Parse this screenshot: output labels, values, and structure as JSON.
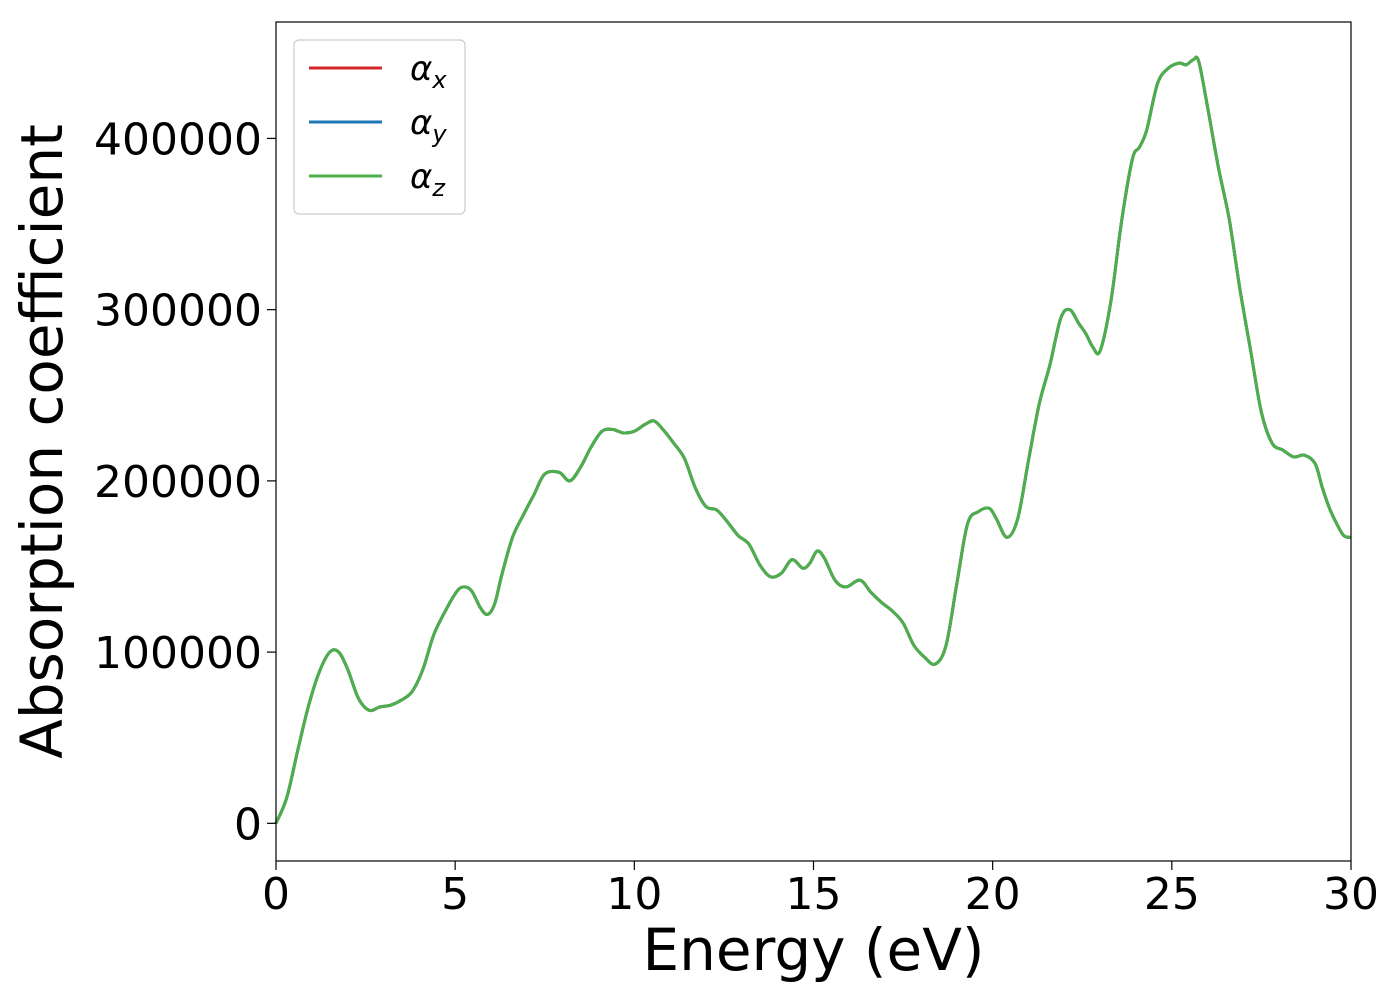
{
  "chart_data": {
    "type": "line",
    "xlabel": "Energy (eV)",
    "ylabel": "Absorption coefficient",
    "xlim": [
      0,
      30
    ],
    "ylim": [
      -22000,
      468000
    ],
    "xticks": [
      0,
      5,
      10,
      15,
      20,
      25,
      30
    ],
    "yticks": [
      0,
      100000,
      200000,
      300000,
      400000
    ],
    "grid": false,
    "legend_position": "upper-left",
    "series": [
      {
        "name": "α_x",
        "symbol": "α",
        "subscript": "x",
        "color": "#d62728",
        "x": [
          0,
          0.3,
          0.6,
          0.9,
          1.2,
          1.5,
          1.75,
          2.0,
          2.3,
          2.6,
          2.9,
          3.2,
          3.5,
          3.8,
          4.1,
          4.4,
          4.7,
          5.0,
          5.2,
          5.45,
          5.7,
          5.9,
          6.1,
          6.3,
          6.6,
          6.9,
          7.2,
          7.5,
          7.9,
          8.2,
          8.5,
          8.8,
          9.1,
          9.4,
          9.7,
          10.0,
          10.3,
          10.55,
          10.8,
          11.1,
          11.4,
          11.7,
          12.0,
          12.3,
          12.6,
          12.9,
          13.2,
          13.5,
          13.8,
          14.1,
          14.4,
          14.7,
          14.9,
          15.1,
          15.3,
          15.6,
          15.9,
          16.3,
          16.6,
          16.9,
          17.2,
          17.5,
          17.8,
          18.1,
          18.4,
          18.7,
          19.0,
          19.3,
          19.6,
          19.9,
          20.1,
          20.4,
          20.7,
          21.0,
          21.3,
          21.6,
          21.9,
          22.15,
          22.4,
          22.6,
          22.8,
          23.0,
          23.3,
          23.6,
          23.9,
          24.1,
          24.3,
          24.6,
          24.9,
          25.2,
          25.4,
          25.6,
          25.75,
          26.0,
          26.3,
          26.6,
          26.9,
          27.2,
          27.5,
          27.8,
          28.1,
          28.4,
          28.7,
          29.0,
          29.2,
          29.4,
          29.6,
          29.8,
          30.0
        ],
        "y": [
          0,
          15000,
          42000,
          68000,
          88000,
          100000,
          100000,
          90000,
          73000,
          66000,
          68000,
          69000,
          72000,
          77000,
          90000,
          110000,
          123000,
          134000,
          138000,
          136000,
          126000,
          122000,
          128000,
          145000,
          167000,
          180000,
          192000,
          204000,
          205000,
          200000,
          208000,
          220000,
          229000,
          230000,
          228000,
          229000,
          233000,
          235000,
          230000,
          222000,
          213000,
          196000,
          185000,
          183000,
          176000,
          168000,
          163000,
          151000,
          144000,
          146000,
          154000,
          149000,
          152000,
          159000,
          155000,
          142000,
          138000,
          142000,
          135000,
          129000,
          124000,
          117000,
          104000,
          97000,
          93000,
          104000,
          140000,
          175000,
          182000,
          184000,
          178000,
          167000,
          178000,
          212000,
          245000,
          268000,
          295000,
          300000,
          292000,
          286000,
          278000,
          276000,
          305000,
          352000,
          388000,
          395000,
          405000,
          432000,
          441000,
          444000,
          443000,
          446000,
          445000,
          418000,
          383000,
          353000,
          312000,
          276000,
          240000,
          222000,
          218000,
          214000,
          215000,
          210000,
          196000,
          184000,
          175000,
          168000,
          167000
        ]
      },
      {
        "name": "α_y",
        "symbol": "α",
        "subscript": "y",
        "color": "#1f77b4",
        "x": [
          0,
          0.3,
          0.6,
          0.9,
          1.2,
          1.5,
          1.75,
          2.0,
          2.3,
          2.6,
          2.9,
          3.2,
          3.5,
          3.8,
          4.1,
          4.4,
          4.7,
          5.0,
          5.2,
          5.45,
          5.7,
          5.9,
          6.1,
          6.3,
          6.6,
          6.9,
          7.2,
          7.5,
          7.9,
          8.2,
          8.5,
          8.8,
          9.1,
          9.4,
          9.7,
          10.0,
          10.3,
          10.55,
          10.8,
          11.1,
          11.4,
          11.7,
          12.0,
          12.3,
          12.6,
          12.9,
          13.2,
          13.5,
          13.8,
          14.1,
          14.4,
          14.7,
          14.9,
          15.1,
          15.3,
          15.6,
          15.9,
          16.3,
          16.6,
          16.9,
          17.2,
          17.5,
          17.8,
          18.1,
          18.4,
          18.7,
          19.0,
          19.3,
          19.6,
          19.9,
          20.1,
          20.4,
          20.7,
          21.0,
          21.3,
          21.6,
          21.9,
          22.15,
          22.4,
          22.6,
          22.8,
          23.0,
          23.3,
          23.6,
          23.9,
          24.1,
          24.3,
          24.6,
          24.9,
          25.2,
          25.4,
          25.6,
          25.75,
          26.0,
          26.3,
          26.6,
          26.9,
          27.2,
          27.5,
          27.8,
          28.1,
          28.4,
          28.7,
          29.0,
          29.2,
          29.4,
          29.6,
          29.8,
          30.0
        ],
        "y": [
          0,
          15000,
          42000,
          68000,
          88000,
          100000,
          100000,
          90000,
          73000,
          66000,
          68000,
          69000,
          72000,
          77000,
          90000,
          110000,
          123000,
          134000,
          138000,
          136000,
          126000,
          122000,
          128000,
          145000,
          167000,
          180000,
          192000,
          204000,
          205000,
          200000,
          208000,
          220000,
          229000,
          230000,
          228000,
          229000,
          233000,
          235000,
          230000,
          222000,
          213000,
          196000,
          185000,
          183000,
          176000,
          168000,
          163000,
          151000,
          144000,
          146000,
          154000,
          149000,
          152000,
          159000,
          155000,
          142000,
          138000,
          142000,
          135000,
          129000,
          124000,
          117000,
          104000,
          97000,
          93000,
          104000,
          140000,
          175000,
          182000,
          184000,
          178000,
          167000,
          178000,
          212000,
          245000,
          268000,
          295000,
          300000,
          292000,
          286000,
          278000,
          276000,
          305000,
          352000,
          388000,
          395000,
          405000,
          432000,
          441000,
          444000,
          443000,
          446000,
          445000,
          418000,
          383000,
          353000,
          312000,
          276000,
          240000,
          222000,
          218000,
          214000,
          215000,
          210000,
          196000,
          184000,
          175000,
          168000,
          167000
        ]
      },
      {
        "name": "α_z",
        "symbol": "α",
        "subscript": "z",
        "color": "#4daf4a",
        "x": [
          0,
          0.3,
          0.6,
          0.9,
          1.2,
          1.5,
          1.75,
          2.0,
          2.3,
          2.6,
          2.9,
          3.2,
          3.5,
          3.8,
          4.1,
          4.4,
          4.7,
          5.0,
          5.2,
          5.45,
          5.7,
          5.9,
          6.1,
          6.3,
          6.6,
          6.9,
          7.2,
          7.5,
          7.9,
          8.2,
          8.5,
          8.8,
          9.1,
          9.4,
          9.7,
          10.0,
          10.3,
          10.55,
          10.8,
          11.1,
          11.4,
          11.7,
          12.0,
          12.3,
          12.6,
          12.9,
          13.2,
          13.5,
          13.8,
          14.1,
          14.4,
          14.7,
          14.9,
          15.1,
          15.3,
          15.6,
          15.9,
          16.3,
          16.6,
          16.9,
          17.2,
          17.5,
          17.8,
          18.1,
          18.4,
          18.7,
          19.0,
          19.3,
          19.6,
          19.9,
          20.1,
          20.4,
          20.7,
          21.0,
          21.3,
          21.6,
          21.9,
          22.15,
          22.4,
          22.6,
          22.8,
          23.0,
          23.3,
          23.6,
          23.9,
          24.1,
          24.3,
          24.6,
          24.9,
          25.2,
          25.4,
          25.6,
          25.75,
          26.0,
          26.3,
          26.6,
          26.9,
          27.2,
          27.5,
          27.8,
          28.1,
          28.4,
          28.7,
          29.0,
          29.2,
          29.4,
          29.6,
          29.8,
          30.0
        ],
        "y": [
          0,
          15000,
          42000,
          68000,
          88000,
          100000,
          100000,
          90000,
          73000,
          66000,
          68000,
          69000,
          72000,
          77000,
          90000,
          110000,
          123000,
          134000,
          138000,
          136000,
          126000,
          122000,
          128000,
          145000,
          167000,
          180000,
          192000,
          204000,
          205000,
          200000,
          208000,
          220000,
          229000,
          230000,
          228000,
          229000,
          233000,
          235000,
          230000,
          222000,
          213000,
          196000,
          185000,
          183000,
          176000,
          168000,
          163000,
          151000,
          144000,
          146000,
          154000,
          149000,
          152000,
          159000,
          155000,
          142000,
          138000,
          142000,
          135000,
          129000,
          124000,
          117000,
          104000,
          97000,
          93000,
          104000,
          140000,
          175000,
          182000,
          184000,
          178000,
          167000,
          178000,
          212000,
          245000,
          268000,
          295000,
          300000,
          292000,
          286000,
          278000,
          276000,
          305000,
          352000,
          388000,
          395000,
          405000,
          432000,
          441000,
          444000,
          443000,
          446000,
          445000,
          418000,
          383000,
          353000,
          312000,
          276000,
          240000,
          222000,
          218000,
          214000,
          215000,
          210000,
          196000,
          184000,
          175000,
          168000,
          167000
        ]
      }
    ]
  }
}
